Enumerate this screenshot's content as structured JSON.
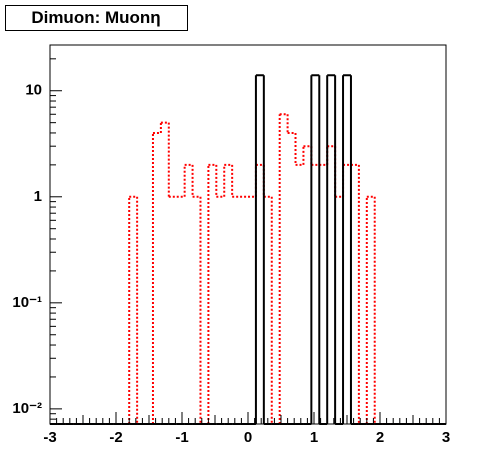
{
  "chart_data": {
    "type": "histogram",
    "title": "Dimuon: Muonη",
    "bins": [
      -3,
      -2.88,
      -2.76,
      -2.64,
      -2.52,
      -2.4,
      -2.28,
      -2.16,
      -2.04,
      -1.92,
      -1.8,
      -1.68,
      -1.56,
      -1.44,
      -1.32,
      -1.2,
      -1.08,
      -0.96,
      -0.84,
      -0.72,
      -0.6,
      -0.48,
      -0.36,
      -0.24,
      -0.12,
      0,
      0.12,
      0.24,
      0.36,
      0.48,
      0.6,
      0.72,
      0.84,
      0.96,
      1.08,
      1.2,
      1.32,
      1.44,
      1.56,
      1.68,
      1.8,
      1.92,
      2.04,
      2.16,
      2.28,
      2.4,
      2.52,
      2.64,
      2.76,
      2.88,
      3
    ],
    "series": [
      {
        "color": "#ff0000",
        "linestyle": "dotted",
        "values": [
          0,
          0,
          0,
          0,
          0,
          0,
          0,
          0,
          0,
          0,
          1,
          0,
          0,
          4,
          5,
          1,
          1,
          2,
          1,
          0,
          2,
          1,
          2,
          1,
          1,
          1,
          2,
          1,
          0,
          6,
          4,
          2,
          3,
          2,
          2,
          3,
          1,
          2,
          2,
          0,
          1,
          0,
          0,
          0,
          0,
          0,
          0,
          0,
          0,
          0
        ]
      },
      {
        "color": "#000000",
        "linestyle": "solid",
        "values": [
          0,
          0,
          0,
          0,
          0,
          0,
          0,
          0,
          0,
          0,
          0,
          0,
          0,
          0,
          0,
          0,
          0,
          0,
          0,
          0,
          0,
          0,
          0,
          0,
          0,
          0,
          14,
          0,
          0,
          0,
          0,
          0,
          0,
          14,
          0,
          14,
          0,
          14,
          0,
          0,
          0,
          0,
          0,
          0,
          0,
          0,
          0,
          0,
          0,
          0
        ]
      }
    ],
    "xlim": [
      -3,
      3
    ],
    "xticks": [
      -3,
      -2,
      -1,
      0,
      1,
      2,
      3
    ],
    "ylim": [
      0.0072,
      27
    ],
    "log_y": true,
    "yticks": [
      {
        "value": 0.01,
        "label": "10⁻²"
      },
      {
        "value": 0.1,
        "label": "10⁻¹"
      },
      1,
      10
    ]
  }
}
